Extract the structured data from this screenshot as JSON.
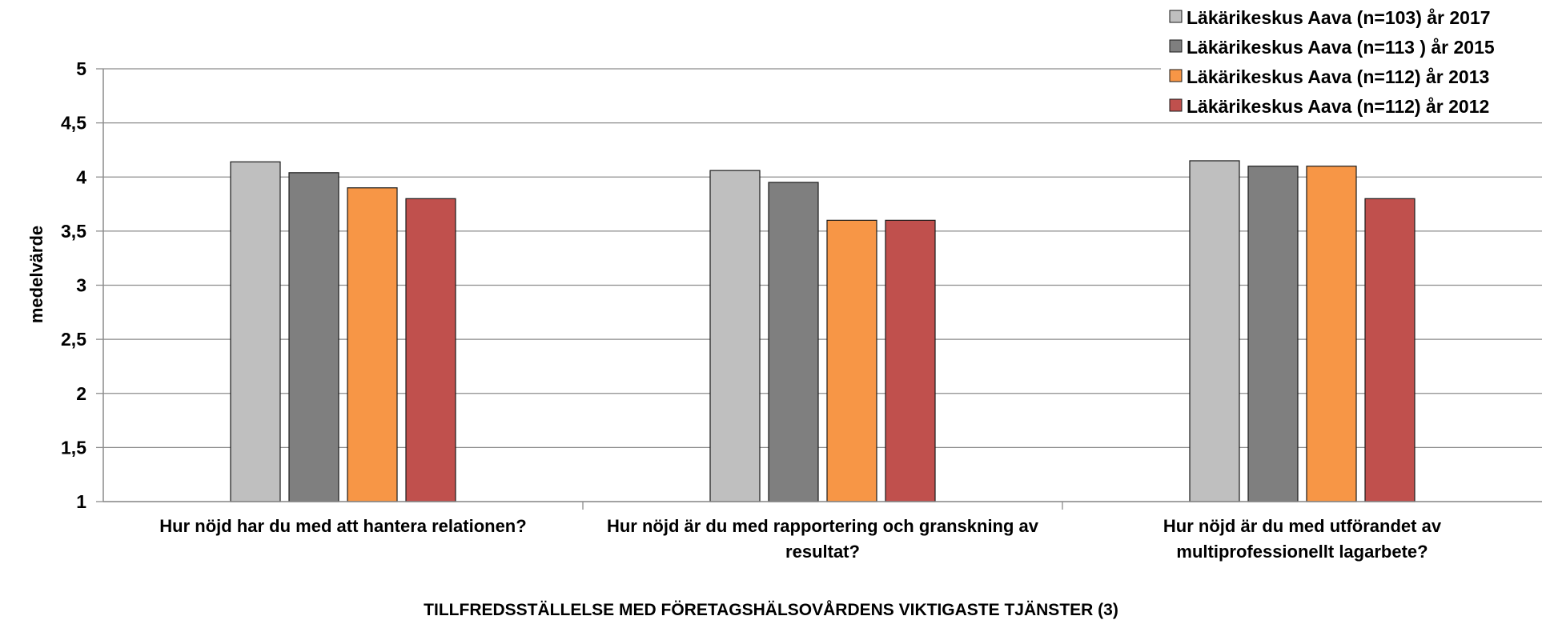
{
  "chart_data": {
    "type": "bar",
    "title": "",
    "xlabel": "TILLFREDSSTÄLLELSE MED FÖRETAGSHÄLSOVÅRDENS VIKTIGASTE TJÄNSTER (3)",
    "ylabel": "medelvärde",
    "ylim": [
      1,
      5
    ],
    "yticks": [
      "1",
      "1,5",
      "2",
      "2,5",
      "3",
      "3,5",
      "4",
      "4,5",
      "5"
    ],
    "grid": true,
    "legend_position": "top-right",
    "categories": [
      [
        "Hur nöjd har du med att hantera relationen?"
      ],
      [
        "Hur nöjd är du med rapportering och granskning av",
        "resultat?"
      ],
      [
        "Hur nöjd är du med utförandet av",
        "multiprofessionellt lagarbete?"
      ]
    ],
    "series": [
      {
        "name": "Läkärikeskus Aava (n=103)  år 2017",
        "color": "#bfbfbf",
        "values": [
          4.14,
          4.06,
          4.15
        ]
      },
      {
        "name": "Läkärikeskus Aava (n=113 ) år 2015",
        "color": "#7f7f7f",
        "values": [
          4.04,
          3.95,
          4.1
        ]
      },
      {
        "name": "Läkärikeskus Aava (n=112)  år 2013",
        "color": "#f79646",
        "values": [
          3.9,
          3.6,
          4.1
        ]
      },
      {
        "name": "Läkärikeskus Aava (n=112)  år 2012",
        "color": "#c0504d",
        "values": [
          3.8,
          3.6,
          3.8
        ]
      }
    ]
  }
}
